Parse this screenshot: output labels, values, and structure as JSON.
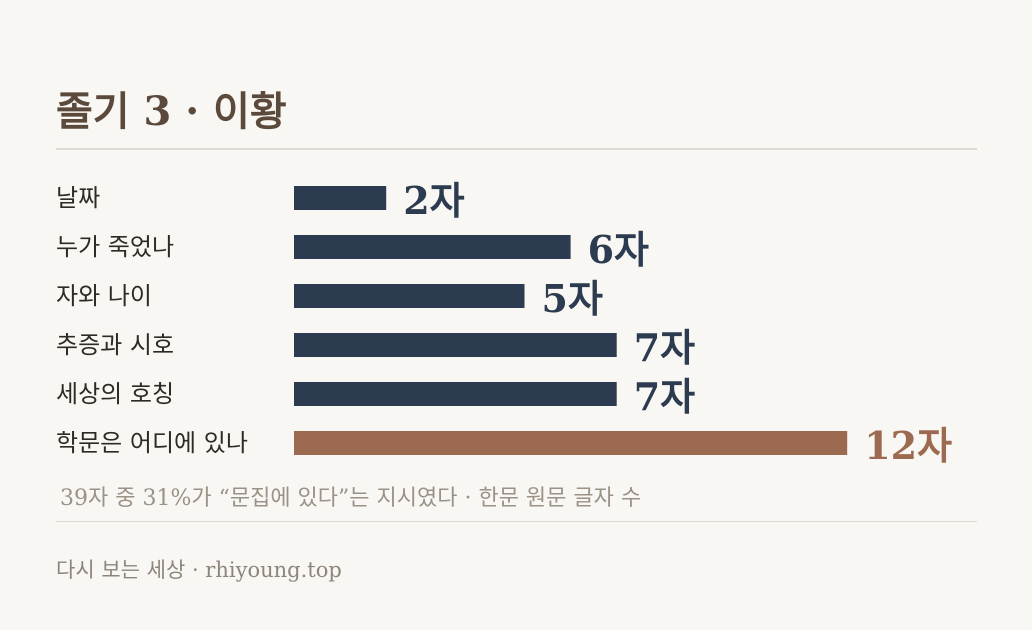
{
  "header": {
    "title": "졸기 3 · 이황"
  },
  "chart_data": {
    "type": "bar",
    "orientation": "horizontal",
    "categories": [
      "날짜",
      "누가 죽었나",
      "자와 나이",
      "추증과 시호",
      "세상의 호칭",
      "학문은 어디에 있나"
    ],
    "values": [
      2,
      6,
      5,
      7,
      7,
      12
    ],
    "value_labels": [
      "2자",
      "6자",
      "5자",
      "7자",
      "7자",
      "12자"
    ],
    "highlight_index": 5,
    "colors": {
      "bar": "#2c3b4f",
      "highlight": "#9c6a50",
      "label": "#2e2a26"
    },
    "note": "39자 중 31%가 “문집에 있다”는 지시였다 · 한문 원문 글자 수",
    "grid": false,
    "legend": "none"
  },
  "footer": {
    "text": "다시 보는 세상 · rhiyoung.top"
  }
}
